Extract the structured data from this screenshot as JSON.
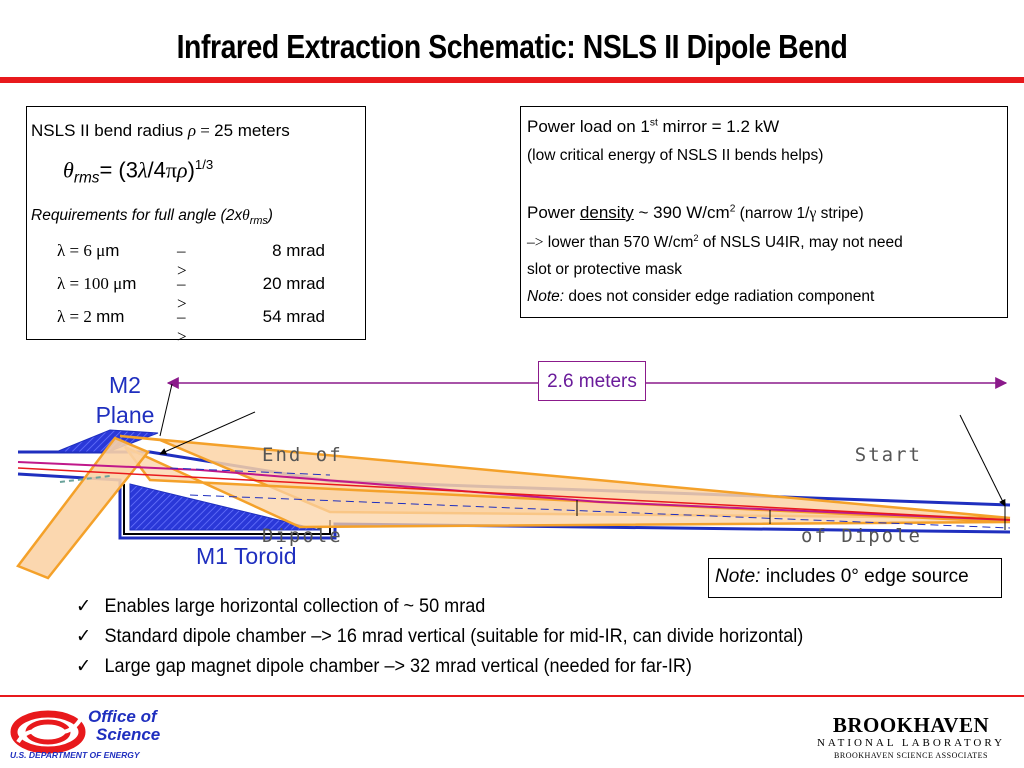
{
  "title": "Infrared Extraction Schematic: NSLS II Dipole Bend",
  "left_box": {
    "line1_prefix": "NSLS II bend radius ",
    "line1_rho": "ρ",
    "line1_eq": " = ",
    "line1_value": "25 meters",
    "formula_theta": "θ",
    "formula_sub": "rms",
    "formula_eq": "= (3",
    "formula_lambda": "λ",
    "formula_mid": "/4",
    "formula_pi": "π",
    "formula_rho": "ρ",
    "formula_close": ")",
    "formula_exp": "1/3",
    "req_prefix": "Requirements for full angle (2x",
    "req_theta": "θ",
    "req_sub": "rms",
    "req_suffix": ")",
    "rows": [
      {
        "lambda": "λ = 6 ",
        "unit_mu": "μ",
        "unit": "m",
        "arrow": "–>",
        "value": "8 mrad"
      },
      {
        "lambda": "λ = 100 ",
        "unit_mu": "μ",
        "unit": "m",
        "arrow": "–>",
        "value": "20 mrad"
      },
      {
        "lambda": "λ = 2 ",
        "unit_mu": "",
        "unit": "mm",
        "arrow": "–>",
        "value": "54 mrad"
      }
    ]
  },
  "right_box": {
    "power_line_a": "Power load on 1",
    "power_line_sup": "st",
    "power_line_b": " mirror = 1.2 kW",
    "power_note": "(low critical energy of NSLS II bends helps)",
    "density_a": "Power ",
    "density_u": "density",
    "density_b": " ~ 390 W/cm",
    "density_sup": "2",
    "density_c": "  (narrow 1/",
    "density_gamma": "γ",
    "density_d": " stripe)",
    "lower_arrow": "–>",
    "lower_a": " lower than 570 W/cm",
    "lower_sup": "2",
    "lower_b": " of NSLS U4IR, may not need",
    "lower_c": "slot or protective mask",
    "note_label": "Note:",
    "note_text": " does not consider edge radiation component"
  },
  "diagram": {
    "span_label": "2.6 meters",
    "m2_label_1": "M2",
    "m2_label_2": "Plane",
    "end_label_1": "End of",
    "end_label_2": "Dipole",
    "start_label_1": "Start",
    "start_label_2": "of Dipole",
    "m1_label": "M1 Toroid",
    "colors": {
      "blue": "#1f2fbf",
      "orange": "#f4a12a",
      "orange_fill": "#fbd3a6",
      "red": "#e8191c",
      "magenta": "#c0188a",
      "purple": "#8b1a8b"
    }
  },
  "note_box": {
    "label": "Note:",
    "text": " includes 0° edge source"
  },
  "bullets": [
    {
      "check": "✓",
      "text": "Enables large horizontal collection of ~ 50 mrad"
    },
    {
      "check": "✓",
      "text": "Standard dipole chamber –> 16 mrad vertical  (suitable for mid-IR, can divide horizontal)"
    },
    {
      "check": "✓",
      "text": "Large gap magnet dipole chamber –> 32 mrad vertical (needed for far-IR)"
    }
  ],
  "footer": {
    "doe_line1": "Office of",
    "doe_line2": "Science",
    "doe_line3": "U.S. DEPARTMENT OF ENERGY",
    "bnl_line1": "BROOKHAVEN",
    "bnl_line2": "NATIONAL LABORATORY",
    "bnl_line3": "BROOKHAVEN SCIENCE ASSOCIATES"
  }
}
